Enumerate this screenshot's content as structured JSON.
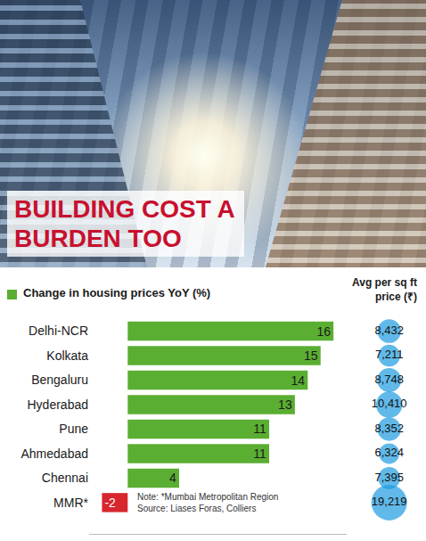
{
  "chart_data": {
    "type": "bar",
    "title": "BUILDING COST A BURDEN TOO",
    "orientation": "horizontal",
    "x_label": "Change in housing prices YoY (%)",
    "categories": [
      "Delhi-NCR",
      "Kolkata",
      "Bengaluru",
      "Hyderabad",
      "Pune",
      "Ahmedabad",
      "Chennai",
      "MMR*"
    ],
    "values": [
      16,
      15,
      14,
      13,
      11,
      11,
      4,
      -2
    ],
    "colors": [
      "#5aae32",
      "#5aae32",
      "#5aae32",
      "#5aae32",
      "#5aae32",
      "#5aae32",
      "#5aae32",
      "#d7262e"
    ],
    "data_labels": true,
    "xlim": [
      -3,
      17
    ],
    "xticks": [],
    "tick_labels": "y",
    "grid": false,
    "bubbles": {
      "name": "Avg per sq ft price (₹)",
      "color": "#1e9be0",
      "values": [
        8432,
        7211,
        8748,
        10410,
        8352,
        6324,
        7395,
        19219
      ],
      "value_labels": [
        "8,432",
        "7,211",
        "8,748",
        "10,410",
        "8,352",
        "6,324",
        "7,395",
        "19,219"
      ]
    },
    "note": "Note: *Mumbai Metropolitan Region",
    "source": "Source: Liases Foras, Colliers"
  }
}
